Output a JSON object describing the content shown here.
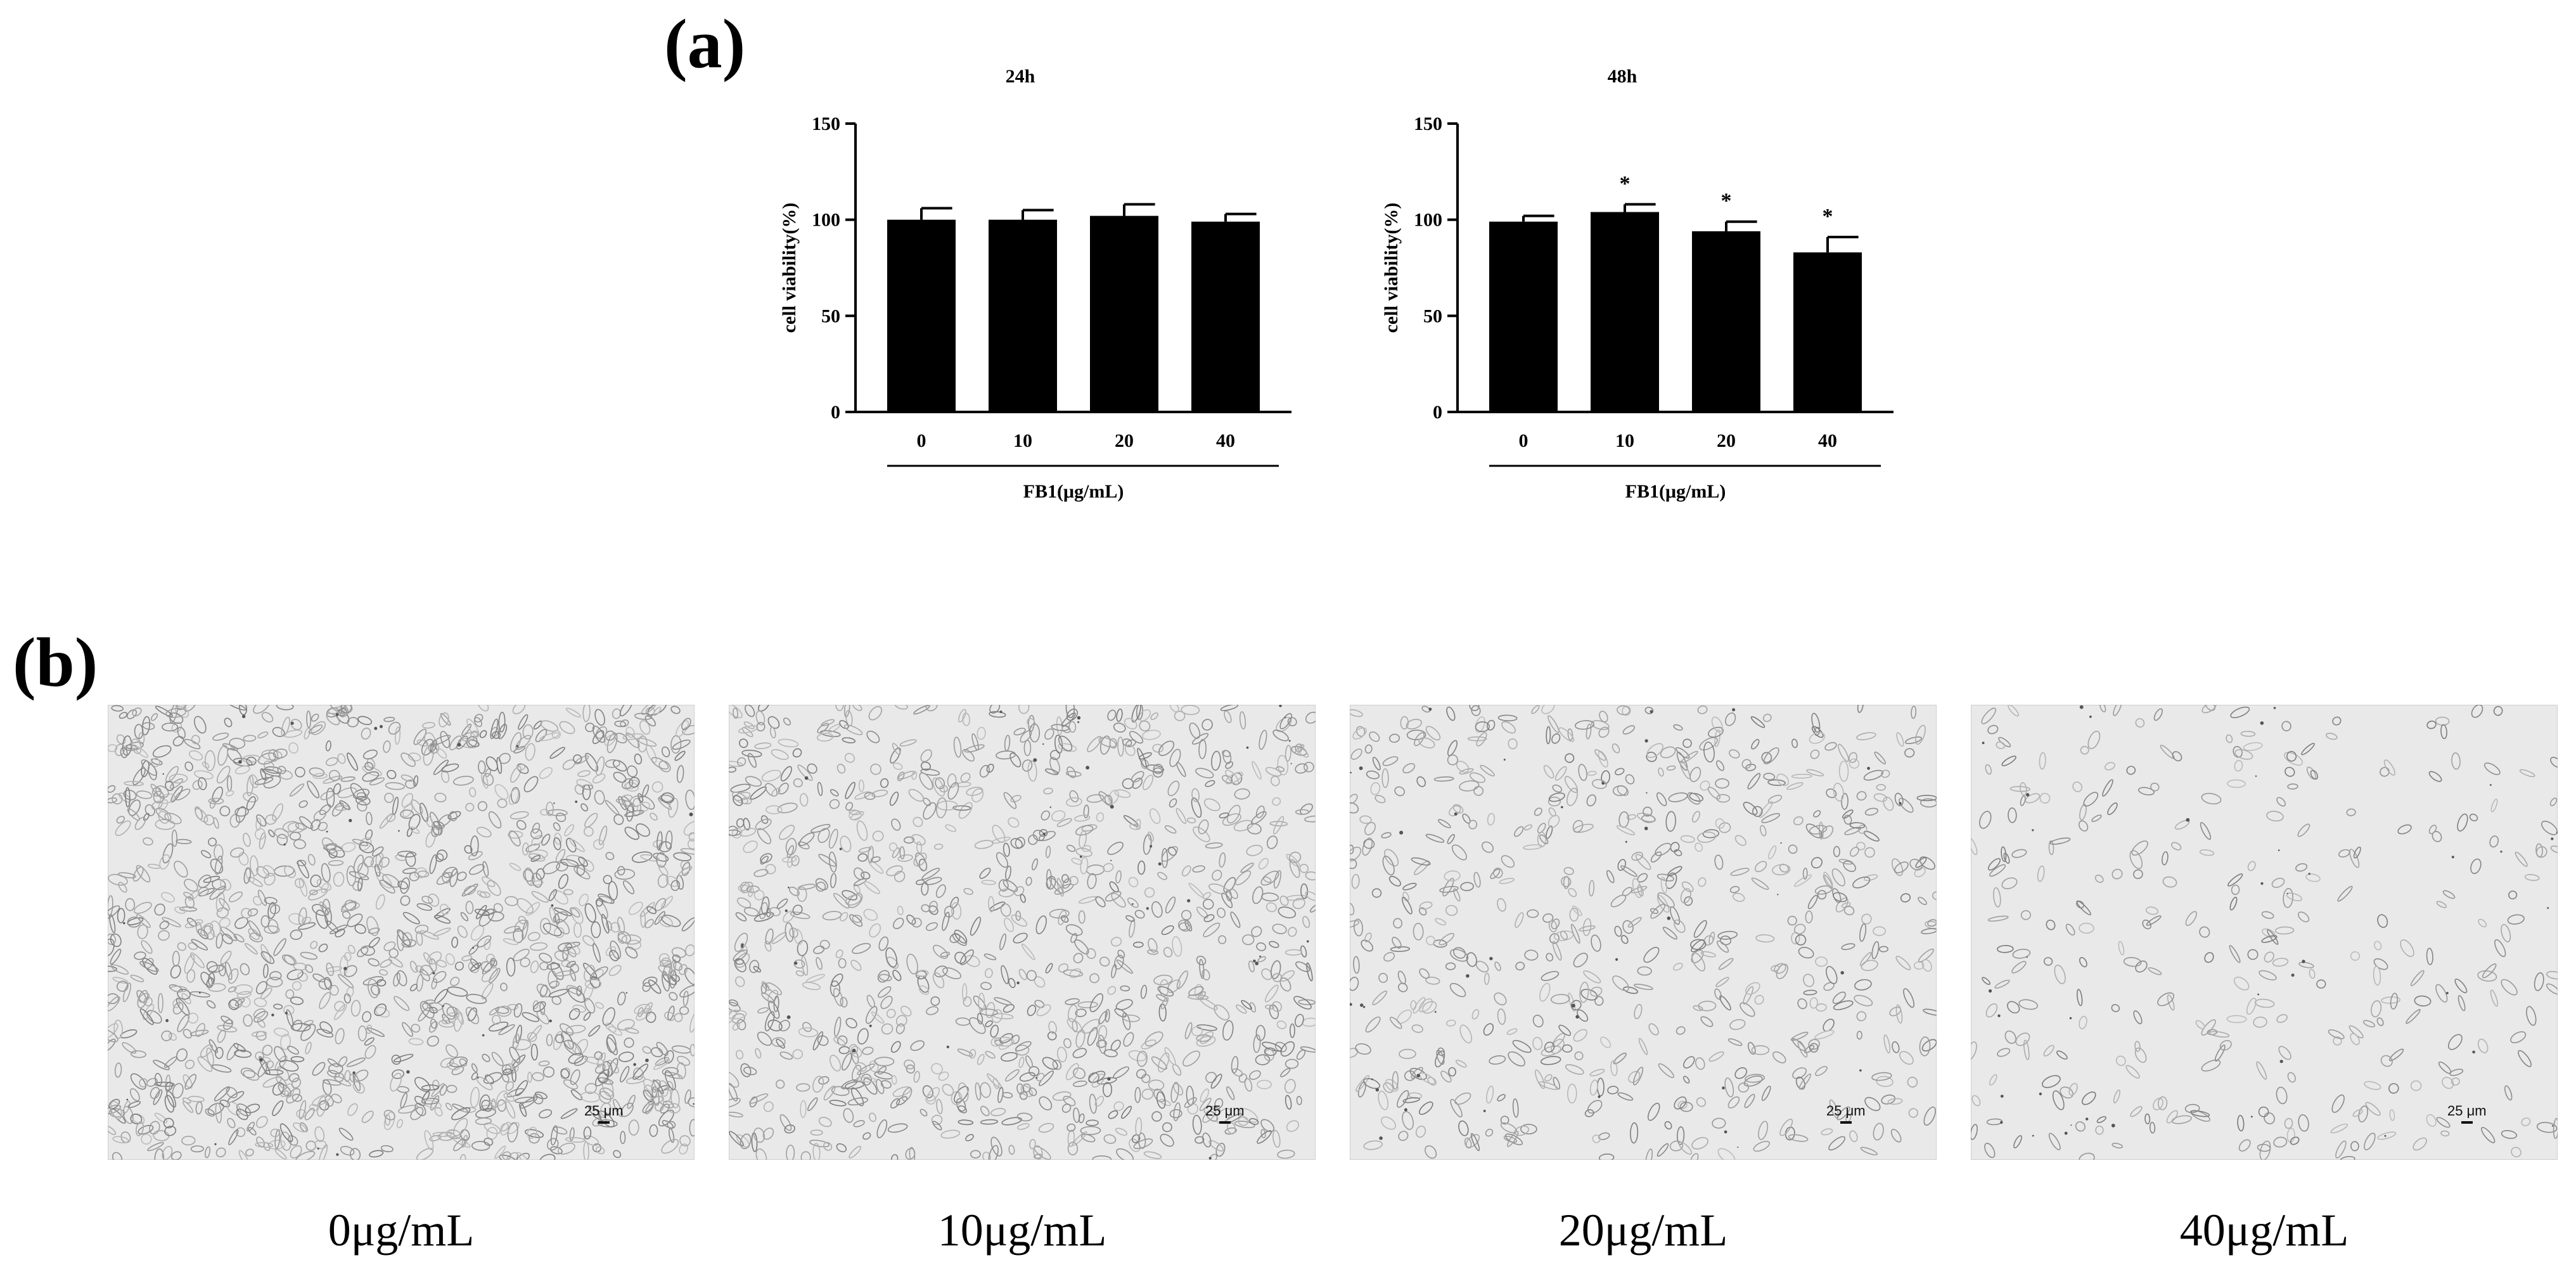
{
  "panels": {
    "a_label": "(a)",
    "b_label": "(b)"
  },
  "chart_data": [
    {
      "type": "bar",
      "title": "24h",
      "categories": [
        "0",
        "10",
        "20",
        "40"
      ],
      "values": [
        100,
        100,
        102,
        99
      ],
      "errors": [
        6,
        5,
        6,
        4
      ],
      "significance": [
        "",
        "",
        "",
        ""
      ],
      "xlabel": "FB1(μg/mL)",
      "ylabel": "cell viability(%)",
      "ylim": [
        0,
        150
      ],
      "yticks": [
        "0",
        "50",
        "100",
        "150"
      ],
      "color": "#000000"
    },
    {
      "type": "bar",
      "title": "48h",
      "categories": [
        "0",
        "10",
        "20",
        "40"
      ],
      "values": [
        99,
        104,
        94,
        83
      ],
      "errors": [
        3,
        4,
        5,
        8
      ],
      "significance": [
        "",
        "*",
        "*",
        "*"
      ],
      "xlabel": "FB1(μg/mL)",
      "ylabel": "cell viability(%)",
      "ylim": [
        0,
        150
      ],
      "yticks": [
        "0",
        "50",
        "100",
        "150"
      ],
      "color": "#000000"
    }
  ],
  "micrographs": [
    {
      "caption": "0μg/mL",
      "scale_label": "25 μm",
      "density": 1.0
    },
    {
      "caption": "10μg/mL",
      "scale_label": "25 μm",
      "density": 0.7
    },
    {
      "caption": "20μg/mL",
      "scale_label": "25 μm",
      "density": 0.45
    },
    {
      "caption": "40μg/mL",
      "scale_label": "25 μm",
      "density": 0.22
    }
  ]
}
